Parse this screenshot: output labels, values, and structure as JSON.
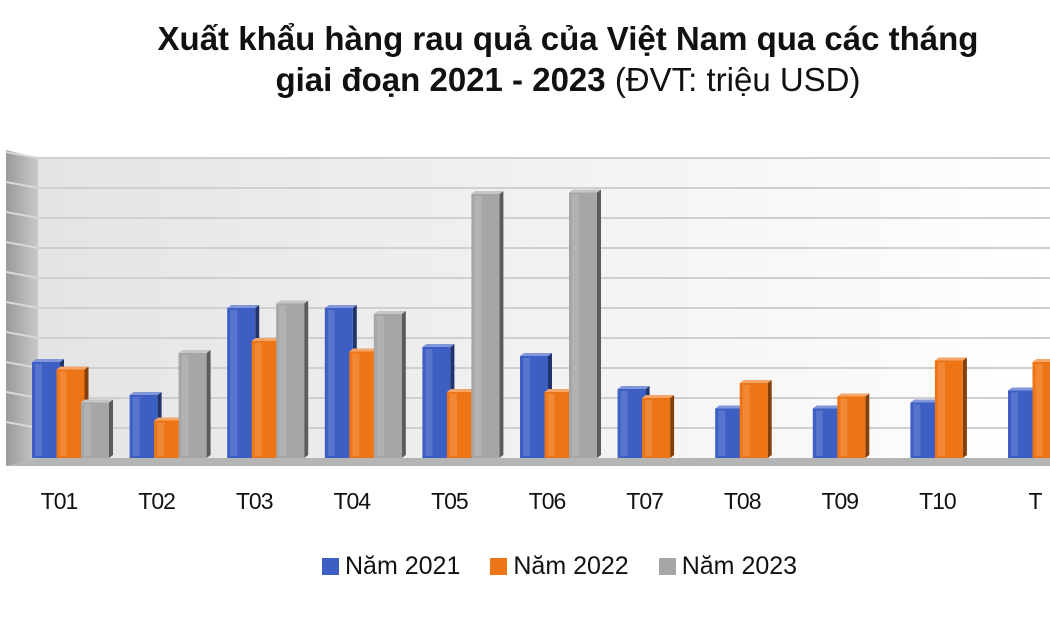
{
  "chart_data": {
    "type": "bar",
    "title_bold": "Xuất khẩu hàng rau quả của Việt Nam qua các tháng",
    "title_bold2": "giai đoạn 2021 - 2023",
    "title_unit": "(ĐVT: triệu USD)",
    "categories": [
      "T01",
      "T02",
      "T03",
      "T04",
      "T05",
      "T06",
      "T07",
      "T08",
      "T09",
      "T10",
      "T"
    ],
    "series": [
      {
        "name": "Năm 2021",
        "color": "#3d5fc4",
        "values": [
          320,
          210,
          500,
          500,
          370,
          340,
          230,
          165,
          165,
          185,
          225
        ]
      },
      {
        "name": "Năm 2022",
        "color": "#ee7515",
        "values": [
          295,
          125,
          390,
          355,
          220,
          220,
          200,
          250,
          205,
          325,
          320
        ]
      },
      {
        "name": "Năm 2023",
        "color": "#a6a6a6",
        "values": [
          185,
          350,
          515,
          480,
          880,
          885,
          null,
          null,
          null,
          null,
          null
        ]
      }
    ],
    "ylim": [
      0,
      1000
    ],
    "xlabel": "",
    "ylabel": "",
    "grid": true,
    "legend_position": "bottom"
  }
}
